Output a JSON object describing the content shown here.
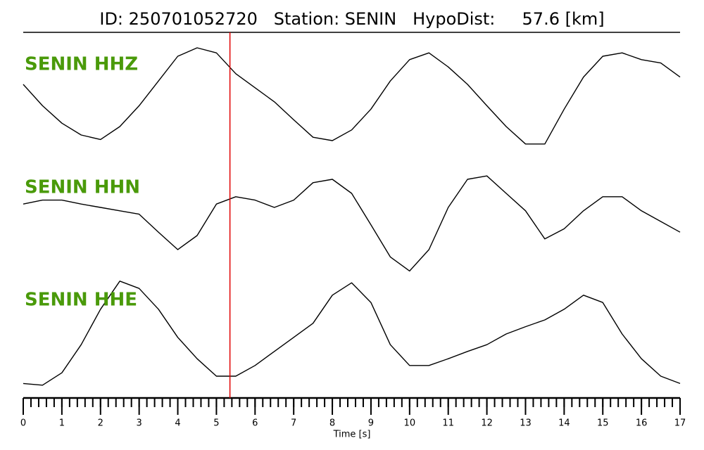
{
  "chart_data": {
    "type": "line",
    "title": "ID: 250701052720   Station: SENIN   HypoDist:     57.6 [km]",
    "xlabel": "Time [s]",
    "xlim": [
      0,
      17
    ],
    "xticks": [
      0,
      1,
      2,
      3,
      4,
      5,
      6,
      7,
      8,
      9,
      10,
      11,
      12,
      13,
      14,
      15,
      16,
      17
    ],
    "minor_tick_interval": 0.2,
    "pick_time": 5.35,
    "pick_color": "#e00000",
    "label_color": "#4a9a0a",
    "x": [
      0,
      0.5,
      1,
      1.5,
      2,
      2.5,
      3,
      3.5,
      4,
      4.5,
      5,
      5.5,
      6,
      6.5,
      7,
      7.5,
      8,
      8.5,
      9,
      9.5,
      10,
      10.5,
      11,
      11.5,
      12,
      12.5,
      13,
      13.5,
      14,
      14.5,
      15,
      15.5,
      16,
      16.5,
      17
    ],
    "series": [
      {
        "name": "SENIN HHZ",
        "color": "#000000",
        "ylim": [
          -1,
          1
        ],
        "values": [
          0.25,
          -0.13,
          -0.44,
          -0.65,
          -0.73,
          -0.5,
          -0.13,
          0.31,
          0.75,
          0.9,
          0.81,
          0.44,
          0.19,
          -0.06,
          -0.38,
          -0.69,
          -0.75,
          -0.56,
          -0.19,
          0.31,
          0.69,
          0.81,
          0.56,
          0.25,
          -0.13,
          -0.5,
          -0.81,
          -0.81,
          -0.19,
          0.38,
          0.75,
          0.81,
          0.69,
          0.63,
          0.38
        ]
      },
      {
        "name": "SENIN HHN",
        "color": "#000000",
        "ylim": [
          -1,
          1
        ],
        "values": [
          0.31,
          0.38,
          0.38,
          0.31,
          0.25,
          0.19,
          0.13,
          -0.19,
          -0.5,
          -0.25,
          0.31,
          0.44,
          0.38,
          0.25,
          0.38,
          0.69,
          0.75,
          0.5,
          -0.06,
          -0.63,
          -0.88,
          -0.5,
          0.25,
          0.75,
          0.81,
          0.5,
          0.19,
          -0.31,
          -0.13,
          0.19,
          0.44,
          0.44,
          0.19,
          0,
          -0.19
        ]
      },
      {
        "name": "SENIN HHE",
        "color": "#000000",
        "ylim": [
          -1,
          1
        ],
        "values": [
          -0.88,
          -0.91,
          -0.69,
          -0.19,
          0.44,
          0.94,
          0.81,
          0.44,
          -0.06,
          -0.44,
          -0.75,
          -0.75,
          -0.56,
          -0.31,
          -0.06,
          0.19,
          0.69,
          0.91,
          0.56,
          -0.19,
          -0.56,
          -0.56,
          -0.44,
          -0.31,
          -0.19,
          0,
          0.13,
          0.25,
          0.44,
          0.69,
          0.56,
          0,
          -0.44,
          -0.75,
          -0.88
        ]
      }
    ]
  }
}
